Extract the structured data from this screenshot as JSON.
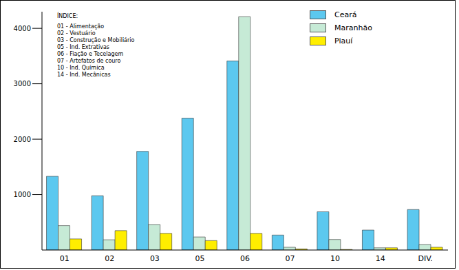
{
  "chart_data": {
    "type": "bar",
    "categories": [
      "01",
      "02",
      "03",
      "05",
      "06",
      "07",
      "10",
      "14",
      "DIV."
    ],
    "series": [
      {
        "name": "Ceará",
        "color": "#5cc8ef",
        "values": [
          1330,
          980,
          1780,
          2380,
          3410,
          270,
          690,
          360,
          730
        ]
      },
      {
        "name": "Maranhão",
        "color": "#c6ead6",
        "values": [
          440,
          185,
          460,
          235,
          4210,
          50,
          190,
          40,
          100
        ]
      },
      {
        "name": "Piauí",
        "color": "#ffee00",
        "values": [
          200,
          350,
          300,
          170,
          300,
          20,
          10,
          40,
          50
        ]
      }
    ],
    "ylim": [
      0,
      4300
    ],
    "yticks": [
      1000,
      2000,
      3000,
      4000
    ],
    "grid": false,
    "legend": "upper right",
    "annotations": [
      "ÍNDICE:",
      "01 - Alimentação",
      "02 - Vestuário",
      "03 - Construção e Mobiliário",
      "05 - Ind. Extrativas",
      "06 - Fiação e Tecelagem",
      "07 - Artefatos de couro",
      "10 - Ind. Química",
      "14 - Ind. Mecânicas"
    ]
  }
}
